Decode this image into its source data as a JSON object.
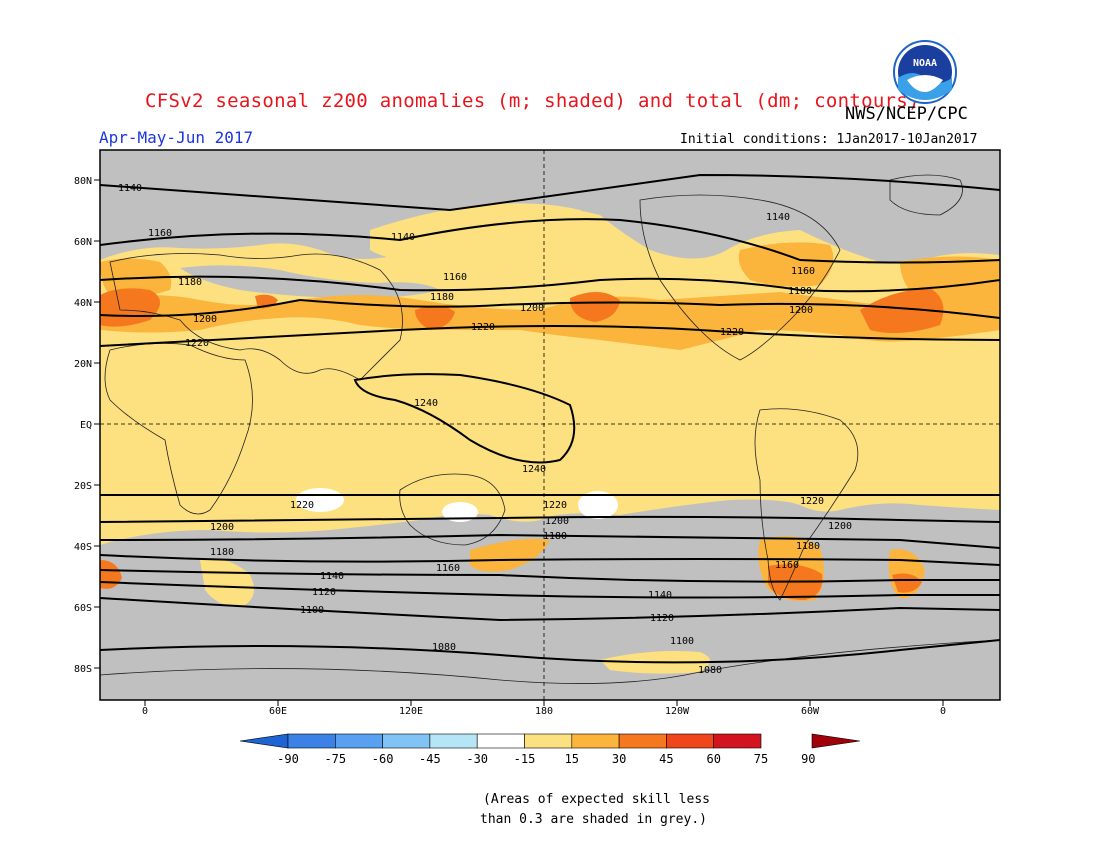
{
  "title": "CFSv2 seasonal z200 anomalies (m; shaded) and total (dm; contours)",
  "organization": "NWS/NCEP/CPC",
  "season": "Apr-May-Jun 2017",
  "initial_conditions": "Initial conditions: 1Jan2017-10Jan2017",
  "logo_text": "NOAA",
  "lat_labels": [
    "80N",
    "60N",
    "40N",
    "20N",
    "EQ",
    "20S",
    "40S",
    "60S",
    "80S"
  ],
  "lon_labels": [
    "0",
    "60E",
    "120E",
    "180",
    "120W",
    "60W",
    "0"
  ],
  "colorbar_labels": [
    "-90",
    "-75",
    "-60",
    "-45",
    "-30",
    "-15",
    "15",
    "30",
    "45",
    "60",
    "75",
    "90"
  ],
  "colorbar_colors": [
    "#1e64d2",
    "#3c82e6",
    "#5aa0f0",
    "#82c3f5",
    "#b4e6f5",
    "#ffffff",
    "#fde080",
    "#fbb43c",
    "#f6781e",
    "#f0461e",
    "#d2141e",
    "#a0000a"
  ],
  "contour_labels": [
    "1140",
    "1160",
    "1180",
    "1200",
    "1220",
    "1240",
    "1120",
    "1100",
    "1080"
  ],
  "colors": {
    "grey_skill": "#c0c0c0",
    "light_yellow": "#fde080",
    "orange": "#fbb43c",
    "dark_orange": "#f6781e",
    "title_red": "#e8141c",
    "season_blue": "#1c36e0"
  },
  "note_line1": "(Areas of expected skill less",
  "note_line2": "than 0.3 are shaded in grey.)"
}
